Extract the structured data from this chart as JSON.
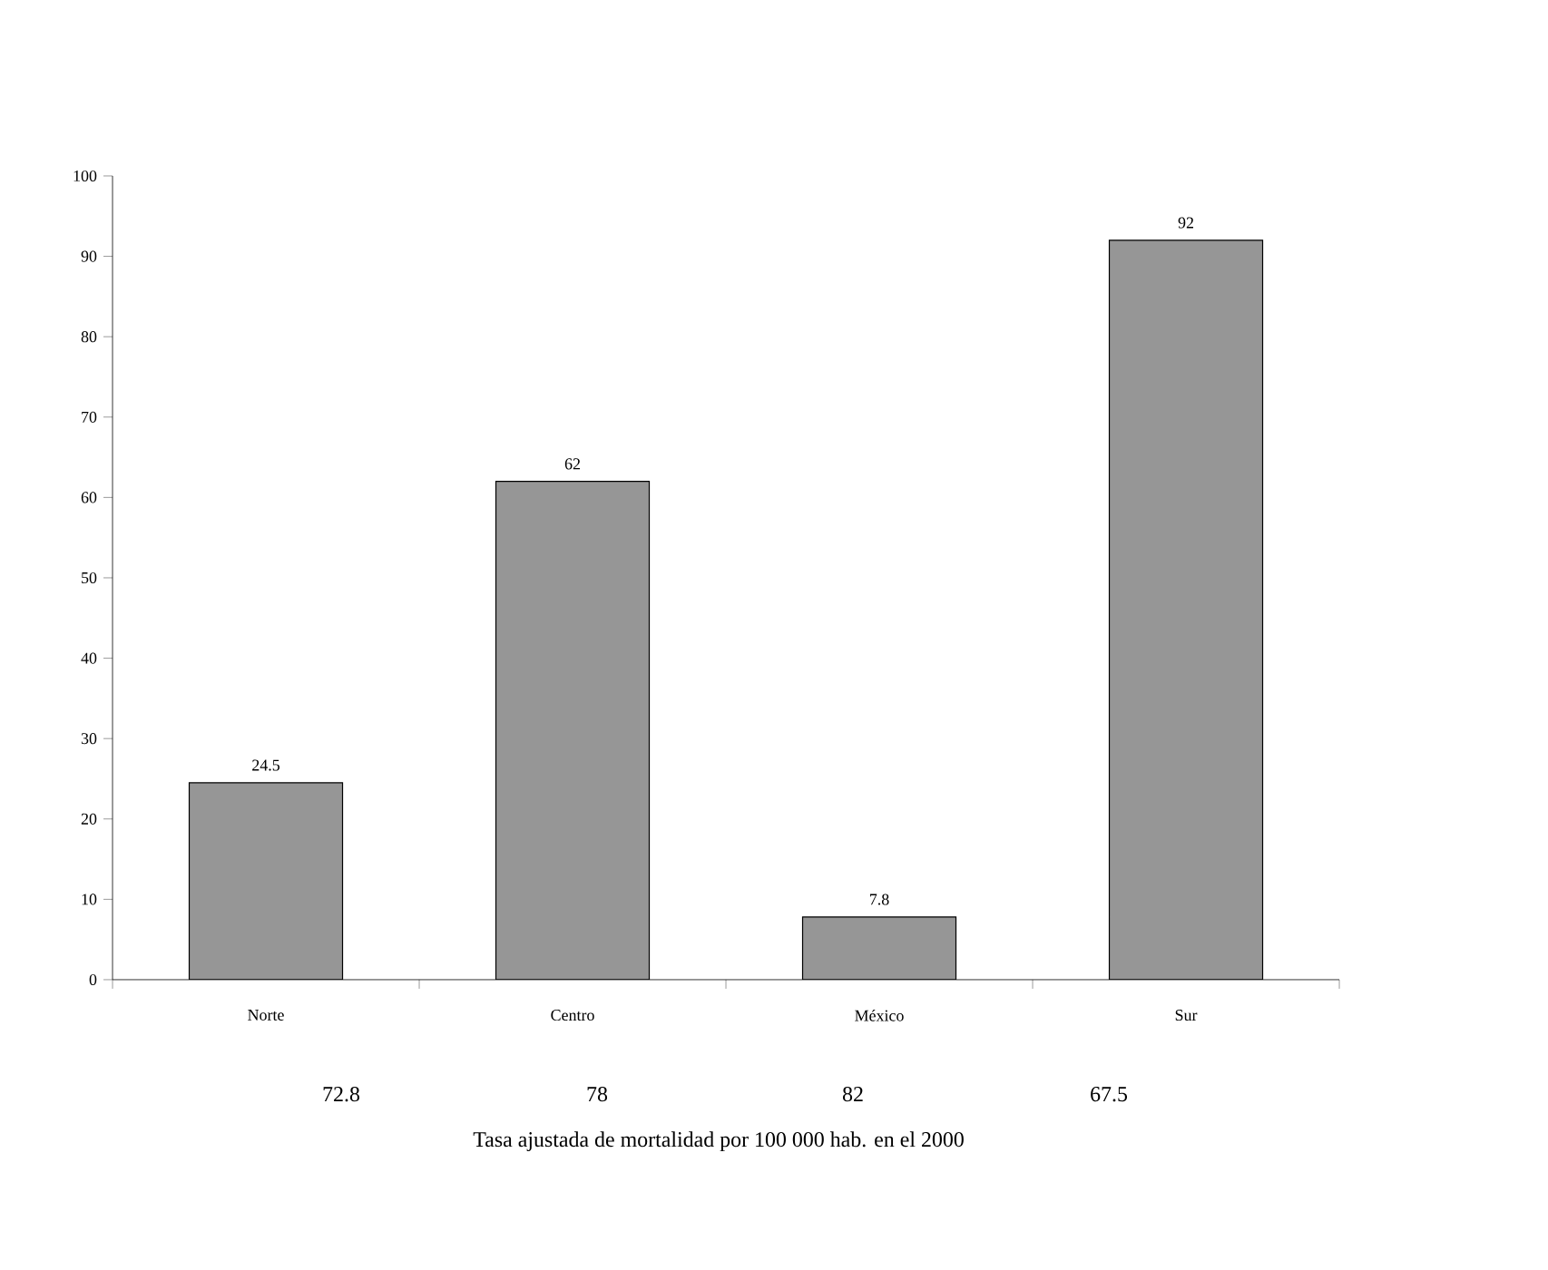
{
  "chart_data": {
    "type": "bar",
    "categories": [
      "Norte",
      "Centro",
      "México",
      "Sur"
    ],
    "values": [
      24.5,
      62,
      7.8,
      92
    ],
    "color": "#969696",
    "data_labels": true,
    "ylim": [
      0,
      100
    ],
    "yticks": [
      0,
      10,
      20,
      30,
      40,
      50,
      60,
      70,
      80,
      90,
      100
    ],
    "annotations": [
      "72.8",
      "78",
      "82",
      "67.5",
      "Tasa ajustada de mortalidad por 100 000 hab. en el 2000"
    ]
  }
}
